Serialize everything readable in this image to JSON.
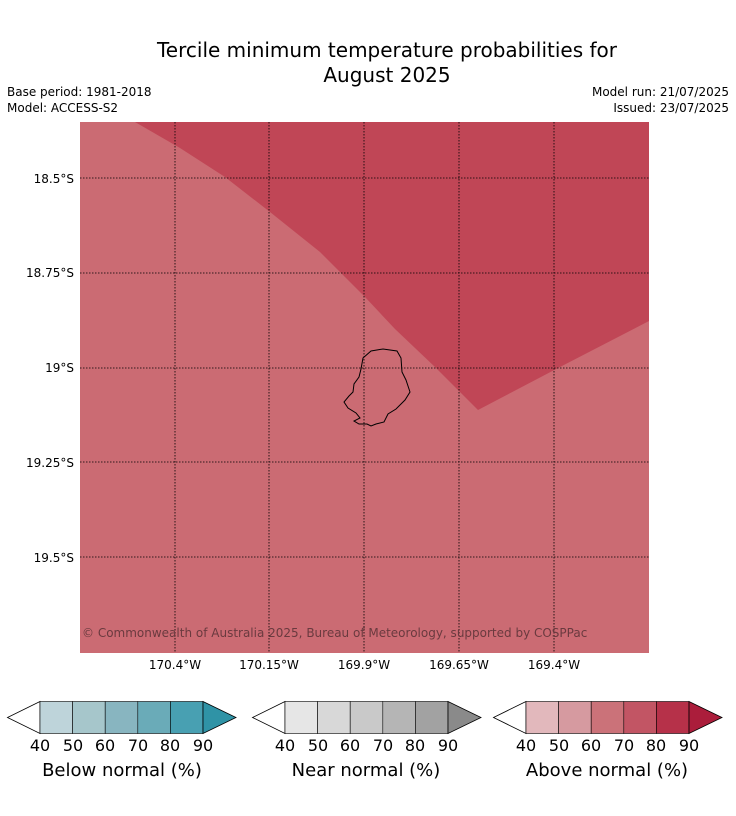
{
  "title": {
    "line1": "Tercile minimum temperature probabilities for",
    "line2": "August 2025"
  },
  "meta": {
    "base_period": "Base period: 1981-2018",
    "model": "Model: ACCESS-S2",
    "model_run": "Model run: 21/07/2025",
    "issued": "Issued: 23/07/2025"
  },
  "map": {
    "copyright": "© Commonwealth of Australia 2025, Bureau of Meteorology, supported by COSPPac",
    "lat_labels": [
      "18.5°S",
      "18.75°S",
      "19°S",
      "19.25°S",
      "19.5°S"
    ],
    "lon_labels": [
      "170.4°W",
      "170.15°W",
      "169.9°W",
      "169.65°W",
      "169.4°W"
    ],
    "fill_colors": {
      "above_60_70": "#cb6b73",
      "above_70_80": "#c04656",
      "coastline": "#000000"
    }
  },
  "colorbars": [
    {
      "label": "Below normal (%)",
      "ticks": [
        "40",
        "50",
        "60",
        "70",
        "80",
        "90"
      ],
      "colors": [
        "#ffffff",
        "#bed4da",
        "#a6c6cb",
        "#88b5c0",
        "#6aabb8",
        "#48a0b2",
        "#2f93a6"
      ]
    },
    {
      "label": "Near normal (%)",
      "ticks": [
        "40",
        "50",
        "60",
        "70",
        "80",
        "90"
      ],
      "colors": [
        "#ffffff",
        "#e6e6e6",
        "#d8d8d8",
        "#c9c9c9",
        "#b5b5b5",
        "#a2a2a2",
        "#8a8a8a"
      ]
    },
    {
      "label": "Above normal (%)",
      "ticks": [
        "40",
        "50",
        "60",
        "70",
        "80",
        "90"
      ],
      "colors": [
        "#ffffff",
        "#e2b8bc",
        "#d69aa0",
        "#cb7279",
        "#c25564",
        "#b63149",
        "#ab1d3b"
      ]
    }
  ]
}
